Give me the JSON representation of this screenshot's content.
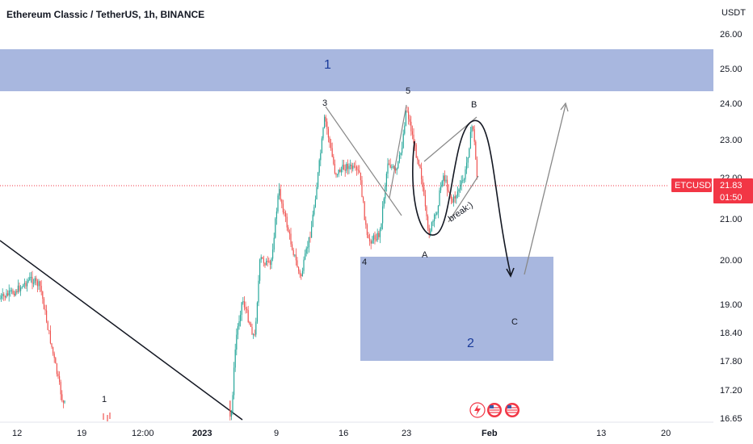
{
  "header": {
    "title": "Ethereum Classic / TetherUS, 1h, BINANCE"
  },
  "price_axis": {
    "unit_label": "USDT",
    "ticks": [
      "26.00",
      "25.00",
      "24.00",
      "23.00",
      "22.00",
      "21.00",
      "20.00",
      "19.00",
      "18.40",
      "17.80",
      "17.20",
      "16.65"
    ]
  },
  "time_axis": {
    "ticks": [
      "12",
      "19",
      "12:00",
      "2023",
      "9",
      "16",
      "23",
      "Feb",
      "13",
      "20"
    ]
  },
  "symbol_badge": {
    "symbol": "ETCUSDT",
    "price": "21.83",
    "countdown": "01:50",
    "color": "#f23645"
  },
  "annotations": {
    "zone_1": "1",
    "zone_2": "2",
    "wave_labels": [
      "3",
      "5",
      "B",
      "A",
      "4",
      "C",
      "1"
    ],
    "break_text": "break:)"
  },
  "colors": {
    "up_candle": "#26a69a",
    "down_candle": "#ef5350",
    "zone_fill": "#8b9fd4",
    "price_line": "#f23645"
  },
  "event_icons": [
    "flash-event-icon",
    "us-flag-event-icon",
    "us-flag-event-icon"
  ],
  "chart_data": {
    "type": "candlestick",
    "symbol": "ETCUSDT",
    "exchange": "BINANCE",
    "timeframe": "1h",
    "price_scale": "log",
    "y_ticks": [
      26.0,
      25.0,
      24.0,
      23.0,
      22.0,
      21.0,
      20.0,
      19.0,
      18.4,
      17.8,
      17.2,
      16.65
    ],
    "last_price": 21.83,
    "x_ticks": [
      "12",
      "19",
      "12:00",
      "2023",
      "9",
      "16",
      "23",
      "Feb",
      "13",
      "20"
    ],
    "approx_close_path": [
      {
        "x": "12",
        "y": 19.2
      },
      {
        "x": "19",
        "y": 17.0
      },
      {
        "x": "2023",
        "y": 16.7
      },
      {
        "x": "9",
        "y": 21.5
      },
      {
        "x": "16",
        "y": 23.5
      },
      {
        "x": "16",
        "y": 20.0
      },
      {
        "x": "23",
        "y": 23.8
      },
      {
        "x": "23",
        "y": 20.5
      },
      {
        "x": "Feb",
        "y": 23.5
      },
      {
        "x": "Feb",
        "y": 21.83
      }
    ],
    "zones": [
      {
        "label": "1",
        "from": 24.4,
        "to": 25.6
      },
      {
        "label": "2",
        "from": 17.8,
        "to": 20.1
      }
    ]
  }
}
